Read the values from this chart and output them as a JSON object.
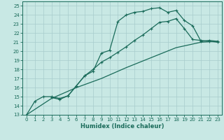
{
  "xlabel": "Humidex (Indice chaleur)",
  "xlim": [
    -0.5,
    23.5
  ],
  "ylim": [
    13,
    25.5
  ],
  "xticks": [
    0,
    1,
    2,
    3,
    4,
    5,
    6,
    7,
    8,
    9,
    10,
    11,
    12,
    13,
    14,
    15,
    16,
    17,
    18,
    19,
    20,
    21,
    22,
    23
  ],
  "yticks": [
    13,
    14,
    15,
    16,
    17,
    18,
    19,
    20,
    21,
    22,
    23,
    24,
    25
  ],
  "bg_color": "#c8e8e4",
  "grid_color": "#a8cccc",
  "line_color": "#1a6b5a",
  "line1_x": [
    0,
    1,
    2,
    3,
    4,
    5,
    6,
    7,
    8,
    9,
    10,
    11,
    12,
    13,
    14,
    15,
    16,
    17,
    18,
    19,
    20,
    21,
    22,
    23
  ],
  "line1_y": [
    13.0,
    14.5,
    15.0,
    15.0,
    14.8,
    15.1,
    16.2,
    17.3,
    17.8,
    19.8,
    20.1,
    23.3,
    24.0,
    24.3,
    24.4,
    24.7,
    24.8,
    24.3,
    24.5,
    23.4,
    22.8,
    21.1,
    21.2,
    21.1
  ],
  "line2_x": [
    3,
    4,
    5,
    6,
    7,
    8,
    9,
    10,
    11,
    12,
    13,
    14,
    15,
    16,
    17,
    18,
    19,
    20,
    21,
    22,
    23
  ],
  "line2_y": [
    14.9,
    14.7,
    15.1,
    16.2,
    17.3,
    18.0,
    18.8,
    19.3,
    19.9,
    20.5,
    21.2,
    21.8,
    22.5,
    23.2,
    23.3,
    23.6,
    22.5,
    21.3,
    21.2,
    21.1,
    21.0
  ],
  "line3_x": [
    0,
    3,
    6,
    9,
    12,
    15,
    18,
    21,
    23
  ],
  "line3_y": [
    13.0,
    14.8,
    16.0,
    17.0,
    18.2,
    19.3,
    20.4,
    21.0,
    21.1
  ],
  "marker": "+",
  "markersize": 3.5,
  "linewidth": 0.9
}
